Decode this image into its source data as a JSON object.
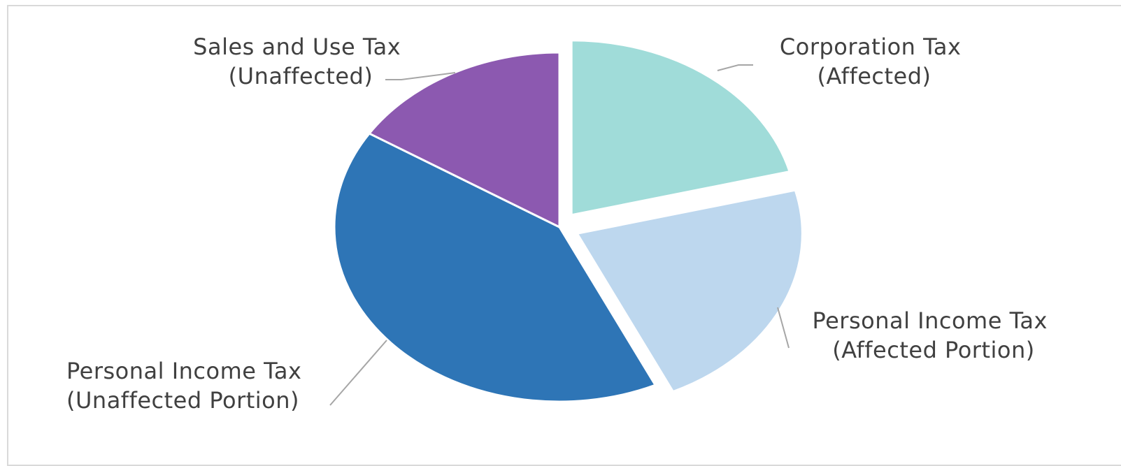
{
  "chart_data": {
    "type": "pie",
    "title": "",
    "legend": "none",
    "slices": [
      {
        "label_line1": "Corporation Tax",
        "label_line2": "(Affected)",
        "value": 21,
        "color": "#a0dcd9",
        "exploded": true
      },
      {
        "label_line1": "Personal Income Tax",
        "label_line2": "(Affected Portion)",
        "value": 22,
        "color": "#bdd7ee",
        "exploded": true
      },
      {
        "label_line1": "Personal Income Tax",
        "label_line2": "(Unaffected Portion)",
        "value": 41,
        "color": "#2e75b6",
        "exploded": false
      },
      {
        "label_line1": "Sales and Use Tax",
        "label_line2": "(Unaffected)",
        "value": 16,
        "color": "#8c59b0",
        "exploded": false
      }
    ]
  }
}
